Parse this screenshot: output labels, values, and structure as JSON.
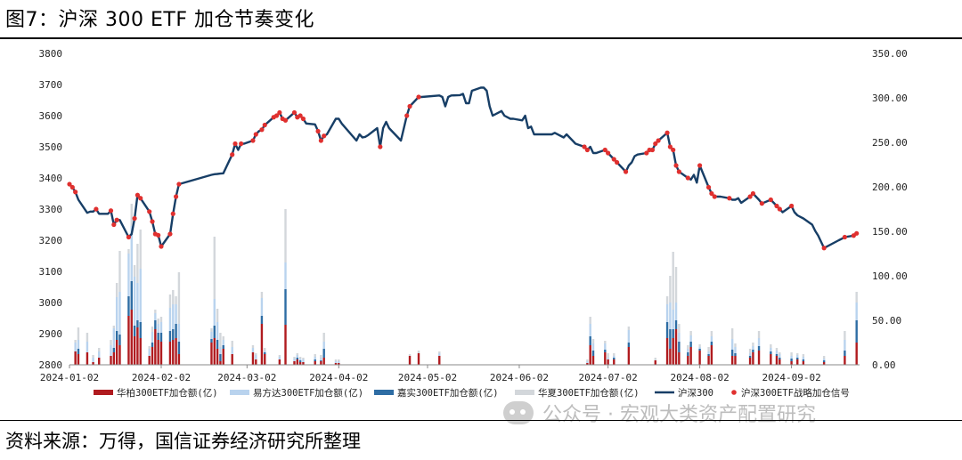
{
  "page": {
    "title": "图7：沪深 300 ETF 加仓节奏变化",
    "source": "资料来源：万得，国信证券经济研究所整理",
    "watermark": "公众号 · 宏观大类资产配置研究",
    "watermark_icon": "wechat-icon"
  },
  "chart_data": {
    "type": "bar+line",
    "x_tick_labels": [
      "2024-01-02",
      "2024-02-02",
      "2024-03-02",
      "2024-04-02",
      "2024-05-02",
      "2024-06-02",
      "2024-07-02",
      "2024-08-02",
      "2024-09-02"
    ],
    "x_range": [
      "2024-01-02",
      "2024-09-25"
    ],
    "y_left": {
      "ticks": [
        "2800",
        "2900",
        "3000",
        "3100",
        "3200",
        "3300",
        "3400",
        "3500",
        "3600",
        "3700",
        "3800"
      ],
      "range": [
        2800,
        3800
      ]
    },
    "y_right": {
      "ticks": [
        "0.00",
        "50.00",
        "100.00",
        "150.00",
        "200.00",
        "250.00",
        "300.00",
        "350.00"
      ],
      "range": [
        0,
        350
      ]
    },
    "colors": {
      "huatai": "#b01b1f",
      "efund": "#b9d3ee",
      "harvest": "#2e6da4",
      "chinaamc": "#d3d7db",
      "line": "#173e66",
      "signal": "#e0302f"
    },
    "legend": [
      {
        "key": "huatai",
        "label": "华柏300ETF加仓额(亿)",
        "kind": "bar"
      },
      {
        "key": "efund",
        "label": "易方达300ETF加仓额(亿)",
        "kind": "bar"
      },
      {
        "key": "harvest",
        "label": "嘉实300ETF加仓额(亿)",
        "kind": "bar"
      },
      {
        "key": "chinaamc",
        "label": "华夏300ETF加仓额(亿)",
        "kind": "bar"
      },
      {
        "key": "line",
        "label": "沪深300",
        "kind": "line"
      },
      {
        "key": "signal",
        "label": "沪深300ETF战略加仓信号",
        "kind": "dot"
      }
    ],
    "csi300": [
      [
        "2024-01-02",
        3380
      ],
      [
        "2024-01-03",
        3370
      ],
      [
        "2024-01-04",
        3355
      ],
      [
        "2024-01-05",
        3330
      ],
      [
        "2024-01-08",
        3288
      ],
      [
        "2024-01-09",
        3292
      ],
      [
        "2024-01-10",
        3292
      ],
      [
        "2024-01-11",
        3300
      ],
      [
        "2024-01-12",
        3285
      ],
      [
        "2024-01-15",
        3285
      ],
      [
        "2024-01-16",
        3295
      ],
      [
        "2024-01-17",
        3250
      ],
      [
        "2024-01-18",
        3265
      ],
      [
        "2024-01-19",
        3265
      ],
      [
        "2024-01-22",
        3210
      ],
      [
        "2024-01-23",
        3220
      ],
      [
        "2024-01-24",
        3270
      ],
      [
        "2024-01-25",
        3345
      ],
      [
        "2024-01-26",
        3335
      ],
      [
        "2024-01-29",
        3292
      ],
      [
        "2024-01-30",
        3260
      ],
      [
        "2024-01-31",
        3220
      ],
      [
        "2024-02-01",
        3216
      ],
      [
        "2024-02-02",
        3180
      ],
      [
        "2024-02-05",
        3220
      ],
      [
        "2024-02-06",
        3285
      ],
      [
        "2024-02-07",
        3340
      ],
      [
        "2024-02-08",
        3380
      ],
      [
        "2024-02-19",
        3410
      ],
      [
        "2024-02-20",
        3412
      ],
      [
        "2024-02-21",
        3413
      ],
      [
        "2024-02-22",
        3414
      ],
      [
        "2024-02-23",
        3415
      ],
      [
        "2024-02-26",
        3475
      ],
      [
        "2024-02-27",
        3510
      ],
      [
        "2024-02-28",
        3490
      ],
      [
        "2024-02-29",
        3510
      ],
      [
        "2024-03-01",
        3510
      ],
      [
        "2024-03-04",
        3520
      ],
      [
        "2024-03-05",
        3540
      ],
      [
        "2024-03-06",
        3550
      ],
      [
        "2024-03-07",
        3555
      ],
      [
        "2024-03-08",
        3570
      ],
      [
        "2024-03-11",
        3595
      ],
      [
        "2024-03-12",
        3600
      ],
      [
        "2024-03-13",
        3610
      ],
      [
        "2024-03-14",
        3590
      ],
      [
        "2024-03-15",
        3585
      ],
      [
        "2024-03-18",
        3610
      ],
      [
        "2024-03-19",
        3595
      ],
      [
        "2024-03-20",
        3600
      ],
      [
        "2024-03-21",
        3590
      ],
      [
        "2024-03-22",
        3575
      ],
      [
        "2024-03-25",
        3572
      ],
      [
        "2024-03-26",
        3550
      ],
      [
        "2024-03-27",
        3520
      ],
      [
        "2024-03-28",
        3535
      ],
      [
        "2024-03-29",
        3540
      ],
      [
        "2024-04-01",
        3590
      ],
      [
        "2024-04-02",
        3590
      ],
      [
        "2024-04-03",
        3575
      ],
      [
        "2024-04-08",
        3520
      ],
      [
        "2024-04-09",
        3540
      ],
      [
        "2024-04-10",
        3530
      ],
      [
        "2024-04-11",
        3532
      ],
      [
        "2024-04-12",
        3538
      ],
      [
        "2024-04-15",
        3560
      ],
      [
        "2024-04-16",
        3500
      ],
      [
        "2024-04-17",
        3560
      ],
      [
        "2024-04-18",
        3580
      ],
      [
        "2024-04-19",
        3560
      ],
      [
        "2024-04-22",
        3530
      ],
      [
        "2024-04-23",
        3520
      ],
      [
        "2024-04-24",
        3560
      ],
      [
        "2024-04-25",
        3600
      ],
      [
        "2024-04-26",
        3630
      ],
      [
        "2024-04-29",
        3660
      ],
      [
        "2024-04-30",
        3660
      ],
      [
        "2024-05-06",
        3665
      ],
      [
        "2024-05-07",
        3660
      ],
      [
        "2024-05-08",
        3630
      ],
      [
        "2024-05-09",
        3660
      ],
      [
        "2024-05-10",
        3665
      ],
      [
        "2024-05-13",
        3666
      ],
      [
        "2024-05-14",
        3670
      ],
      [
        "2024-05-15",
        3640
      ],
      [
        "2024-05-16",
        3640
      ],
      [
        "2024-05-17",
        3680
      ],
      [
        "2024-05-20",
        3690
      ],
      [
        "2024-05-21",
        3690
      ],
      [
        "2024-05-22",
        3680
      ],
      [
        "2024-05-23",
        3630
      ],
      [
        "2024-05-24",
        3600
      ],
      [
        "2024-05-27",
        3615
      ],
      [
        "2024-05-28",
        3600
      ],
      [
        "2024-05-29",
        3595
      ],
      [
        "2024-05-30",
        3590
      ],
      [
        "2024-05-31",
        3590
      ],
      [
        "2024-06-03",
        3585
      ],
      [
        "2024-06-04",
        3600
      ],
      [
        "2024-06-05",
        3560
      ],
      [
        "2024-06-06",
        3565
      ],
      [
        "2024-06-07",
        3540
      ],
      [
        "2024-06-11",
        3540
      ],
      [
        "2024-06-12",
        3540
      ],
      [
        "2024-06-13",
        3540
      ],
      [
        "2024-06-14",
        3545
      ],
      [
        "2024-06-17",
        3530
      ],
      [
        "2024-06-18",
        3540
      ],
      [
        "2024-06-19",
        3530
      ],
      [
        "2024-06-20",
        3520
      ],
      [
        "2024-06-21",
        3510
      ],
      [
        "2024-06-24",
        3500
      ],
      [
        "2024-06-25",
        3490
      ],
      [
        "2024-06-26",
        3500
      ],
      [
        "2024-06-27",
        3480
      ],
      [
        "2024-06-28",
        3480
      ],
      [
        "2024-07-01",
        3490
      ],
      [
        "2024-07-02",
        3480
      ],
      [
        "2024-07-03",
        3470
      ],
      [
        "2024-07-04",
        3460
      ],
      [
        "2024-07-05",
        3450
      ],
      [
        "2024-07-08",
        3420
      ],
      [
        "2024-07-09",
        3440
      ],
      [
        "2024-07-10",
        3450
      ],
      [
        "2024-07-11",
        3470
      ],
      [
        "2024-07-12",
        3475
      ],
      [
        "2024-07-15",
        3480
      ],
      [
        "2024-07-16",
        3490
      ],
      [
        "2024-07-17",
        3490
      ],
      [
        "2024-07-18",
        3510
      ],
      [
        "2024-07-19",
        3520
      ],
      [
        "2024-07-22",
        3545
      ],
      [
        "2024-07-23",
        3500
      ],
      [
        "2024-07-24",
        3490
      ],
      [
        "2024-07-25",
        3440
      ],
      [
        "2024-07-26",
        3420
      ],
      [
        "2024-07-29",
        3400
      ],
      [
        "2024-07-30",
        3395
      ],
      [
        "2024-07-31",
        3410
      ],
      [
        "2024-08-01",
        3385
      ],
      [
        "2024-08-02",
        3440
      ],
      [
        "2024-08-05",
        3370
      ],
      [
        "2024-08-06",
        3350
      ],
      [
        "2024-08-07",
        3340
      ],
      [
        "2024-08-08",
        3340
      ],
      [
        "2024-08-09",
        3340
      ],
      [
        "2024-08-12",
        3335
      ],
      [
        "2024-08-13",
        3330
      ],
      [
        "2024-08-14",
        3330
      ],
      [
        "2024-08-15",
        3335
      ],
      [
        "2024-08-16",
        3320
      ],
      [
        "2024-08-19",
        3340
      ],
      [
        "2024-08-20",
        3350
      ],
      [
        "2024-08-21",
        3340
      ],
      [
        "2024-08-22",
        3330
      ],
      [
        "2024-08-23",
        3318
      ],
      [
        "2024-08-26",
        3330
      ],
      [
        "2024-08-27",
        3320
      ],
      [
        "2024-08-28",
        3310
      ],
      [
        "2024-08-29",
        3300
      ],
      [
        "2024-08-30",
        3290
      ],
      [
        "2024-09-02",
        3310
      ],
      [
        "2024-09-03",
        3290
      ],
      [
        "2024-09-04",
        3280
      ],
      [
        "2024-09-05",
        3275
      ],
      [
        "2024-09-06",
        3270
      ],
      [
        "2024-09-09",
        3250
      ],
      [
        "2024-09-10",
        3230
      ],
      [
        "2024-09-11",
        3215
      ],
      [
        "2024-09-12",
        3195
      ],
      [
        "2024-09-13",
        3175
      ],
      [
        "2024-09-18",
        3200
      ],
      [
        "2024-09-19",
        3205
      ],
      [
        "2024-09-20",
        3210
      ],
      [
        "2024-09-23",
        3215
      ],
      [
        "2024-09-24",
        3222
      ]
    ],
    "signal_dates": [
      "2024-01-02",
      "2024-01-03",
      "2024-01-04",
      "2024-01-11",
      "2024-01-16",
      "2024-01-17",
      "2024-01-18",
      "2024-01-22",
      "2024-01-24",
      "2024-01-25",
      "2024-01-26",
      "2024-01-29",
      "2024-01-30",
      "2024-01-31",
      "2024-02-01",
      "2024-02-02",
      "2024-02-05",
      "2024-02-06",
      "2024-02-07",
      "2024-02-08",
      "2024-02-26",
      "2024-02-27",
      "2024-02-29",
      "2024-03-04",
      "2024-03-05",
      "2024-03-07",
      "2024-03-08",
      "2024-03-11",
      "2024-03-12",
      "2024-03-13",
      "2024-03-14",
      "2024-03-15",
      "2024-03-18",
      "2024-03-19",
      "2024-03-20",
      "2024-03-21",
      "2024-03-26",
      "2024-03-27",
      "2024-03-28",
      "2024-04-16",
      "2024-04-25",
      "2024-04-26",
      "2024-04-29",
      "2024-06-24",
      "2024-06-25",
      "2024-07-01",
      "2024-07-02",
      "2024-07-04",
      "2024-07-05",
      "2024-07-08",
      "2024-07-15",
      "2024-07-16",
      "2024-07-17",
      "2024-07-18",
      "2024-07-19",
      "2024-07-22",
      "2024-07-23",
      "2024-07-24",
      "2024-07-25",
      "2024-07-26",
      "2024-07-29",
      "2024-08-02",
      "2024-08-05",
      "2024-08-06",
      "2024-08-07",
      "2024-08-12",
      "2024-08-19",
      "2024-08-20",
      "2024-08-23",
      "2024-08-26",
      "2024-08-28",
      "2024-08-29",
      "2024-09-02",
      "2024-09-13",
      "2024-09-20",
      "2024-09-23",
      "2024-09-24"
    ],
    "flows": [
      [
        "2024-01-04",
        15,
        10,
        0,
        3
      ],
      [
        "2024-01-05",
        12,
        10,
        6,
        14
      ],
      [
        "2024-01-08",
        14,
        12,
        0,
        10
      ],
      [
        "2024-01-10",
        3,
        5,
        0,
        3
      ],
      [
        "2024-01-12",
        8,
        7,
        0,
        4
      ],
      [
        "2024-01-16",
        10,
        12,
        0,
        6
      ],
      [
        "2024-01-17",
        14,
        22,
        5,
        3
      ],
      [
        "2024-01-18",
        28,
        38,
        10,
        16
      ],
      [
        "2024-01-19",
        22,
        48,
        12,
        46
      ],
      [
        "2024-01-22",
        55,
        48,
        22,
        5
      ],
      [
        "2024-01-23",
        62,
        62,
        32,
        25
      ],
      [
        "2024-01-24",
        32,
        55,
        12,
        13
      ],
      [
        "2024-01-25",
        42,
        42,
        8,
        44
      ],
      [
        "2024-01-26",
        30,
        60,
        18,
        44
      ],
      [
        "2024-01-29",
        10,
        8,
        0,
        3
      ],
      [
        "2024-01-30",
        20,
        12,
        5,
        6
      ],
      [
        "2024-01-31",
        40,
        8,
        10,
        4
      ],
      [
        "2024-02-01",
        28,
        10,
        8,
        6
      ],
      [
        "2024-02-02",
        26,
        12,
        10,
        6
      ],
      [
        "2024-02-05",
        26,
        26,
        12,
        15
      ],
      [
        "2024-02-06",
        28,
        28,
        12,
        16
      ],
      [
        "2024-02-07",
        30,
        22,
        16,
        9
      ],
      [
        "2024-02-08",
        12,
        20,
        14,
        58
      ],
      [
        "2024-02-19",
        25,
        8,
        4,
        4
      ],
      [
        "2024-02-20",
        30,
        30,
        14,
        70
      ],
      [
        "2024-02-21",
        18,
        20,
        10,
        15
      ],
      [
        "2024-02-22",
        4,
        8,
        8,
        16
      ],
      [
        "2024-02-23",
        18,
        6,
        4,
        4
      ],
      [
        "2024-02-26",
        12,
        8,
        0,
        7
      ],
      [
        "2024-03-04",
        14,
        5,
        0,
        3
      ],
      [
        "2024-03-05",
        6,
        5,
        0,
        2
      ],
      [
        "2024-03-07",
        46,
        20,
        9,
        7
      ],
      [
        "2024-03-08",
        12,
        2,
        2,
        3
      ],
      [
        "2024-03-13",
        6,
        3,
        0,
        2
      ],
      [
        "2024-03-15",
        45,
        30,
        40,
        60
      ],
      [
        "2024-03-18",
        4,
        3,
        0,
        2
      ],
      [
        "2024-03-19",
        6,
        3,
        2,
        2
      ],
      [
        "2024-03-20",
        3,
        2,
        2,
        2
      ],
      [
        "2024-03-21",
        3,
        3,
        0,
        2
      ],
      [
        "2024-03-25",
        4,
        3,
        2,
        3
      ],
      [
        "2024-03-27",
        4,
        3,
        1,
        3
      ],
      [
        "2024-03-28",
        8,
        8,
        10,
        10
      ],
      [
        "2024-04-01",
        2,
        2,
        0,
        2
      ],
      [
        "2024-04-02",
        2,
        2,
        0,
        2
      ],
      [
        "2024-04-26",
        10,
        0,
        0,
        2
      ],
      [
        "2024-04-29",
        13,
        0,
        0,
        3
      ],
      [
        "2024-05-06",
        10,
        3,
        0,
        2
      ],
      [
        "2024-06-25",
        2,
        2,
        0,
        2
      ],
      [
        "2024-06-26",
        22,
        14,
        10,
        8
      ],
      [
        "2024-06-27",
        10,
        8,
        6,
        5
      ],
      [
        "2024-07-01",
        14,
        7,
        3,
        3
      ],
      [
        "2024-07-02",
        6,
        2,
        0,
        5
      ],
      [
        "2024-07-04",
        6,
        2,
        2,
        3
      ],
      [
        "2024-07-09",
        20,
        14,
        5,
        4
      ],
      [
        "2024-07-18",
        5,
        0,
        0,
        3
      ],
      [
        "2024-07-22",
        30,
        20,
        18,
        9
      ],
      [
        "2024-07-23",
        18,
        30,
        22,
        30
      ],
      [
        "2024-07-24",
        30,
        22,
        10,
        65
      ],
      [
        "2024-07-25",
        40,
        20,
        10,
        40
      ],
      [
        "2024-07-26",
        14,
        10,
        12,
        10
      ],
      [
        "2024-07-29",
        10,
        4,
        4,
        4
      ],
      [
        "2024-07-30",
        20,
        7,
        6,
        5
      ],
      [
        "2024-08-02",
        16,
        2,
        2,
        3
      ],
      [
        "2024-08-05",
        10,
        3,
        2,
        5
      ],
      [
        "2024-08-06",
        22,
        6,
        4,
        6
      ],
      [
        "2024-08-13",
        10,
        12,
        7,
        12
      ],
      [
        "2024-08-14",
        10,
        7,
        3,
        4
      ],
      [
        "2024-08-19",
        8,
        3,
        2,
        5
      ],
      [
        "2024-08-20",
        14,
        4,
        3,
        4
      ],
      [
        "2024-08-22",
        16,
        9,
        5,
        8
      ],
      [
        "2024-08-26",
        12,
        4,
        3,
        4
      ],
      [
        "2024-08-28",
        10,
        4,
        2,
        3
      ],
      [
        "2024-08-29",
        6,
        4,
        2,
        2
      ],
      [
        "2024-09-02",
        4,
        3,
        3,
        4
      ],
      [
        "2024-09-04",
        6,
        3,
        2,
        2
      ],
      [
        "2024-09-06",
        4,
        3,
        2,
        3
      ],
      [
        "2024-09-13",
        3,
        2,
        2,
        3
      ],
      [
        "2024-09-20",
        10,
        12,
        6,
        10
      ],
      [
        "2024-09-24",
        25,
        20,
        25,
        12
      ]
    ]
  }
}
